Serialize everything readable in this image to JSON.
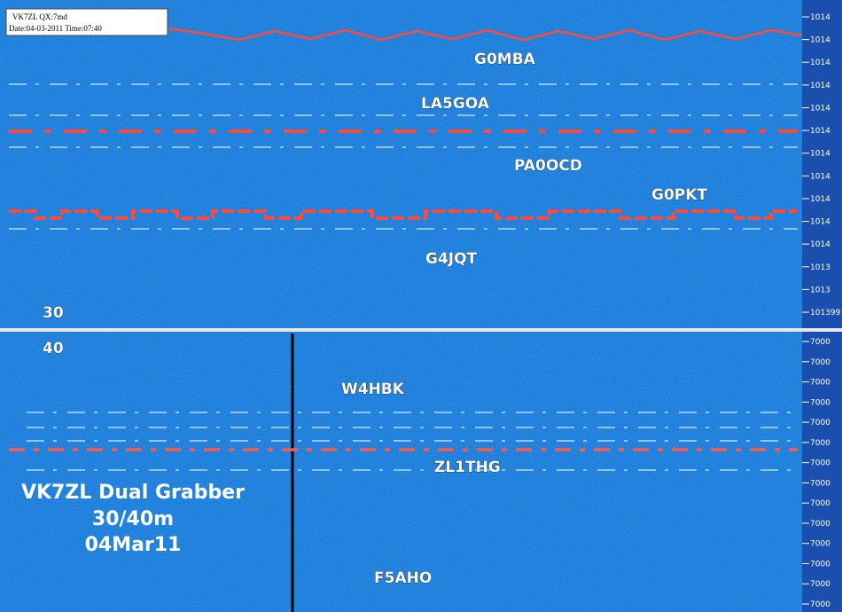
{
  "header": {
    "line1": "VK7ZL      QX:7md",
    "line2": "Date:04-03-2011 Time:07:40"
  },
  "top_panel": {
    "band": "30",
    "callsigns": [
      "G0MBA",
      "LA5GOA",
      "PA0OCD",
      "G0PKT",
      "G4JQT"
    ],
    "scale": [
      "1014",
      "1014",
      "1014",
      "1014",
      "1014",
      "1014",
      "1014",
      "1014",
      "1014",
      "1014",
      "1014",
      "1013",
      "1013",
      "101399"
    ]
  },
  "bottom_panel": {
    "band": "40",
    "callsigns": [
      "W4HBK",
      "ZL1THG",
      "F5AHO"
    ],
    "caption": [
      "VK7ZL Dual Grabber",
      "30/40m",
      "04Mar11"
    ],
    "scale": [
      "7000",
      "7000",
      "7000",
      "7000",
      "7000",
      "7000",
      "7000",
      "7000",
      "7000",
      "7000",
      "7000",
      "7000",
      "7000",
      "7000"
    ]
  }
}
